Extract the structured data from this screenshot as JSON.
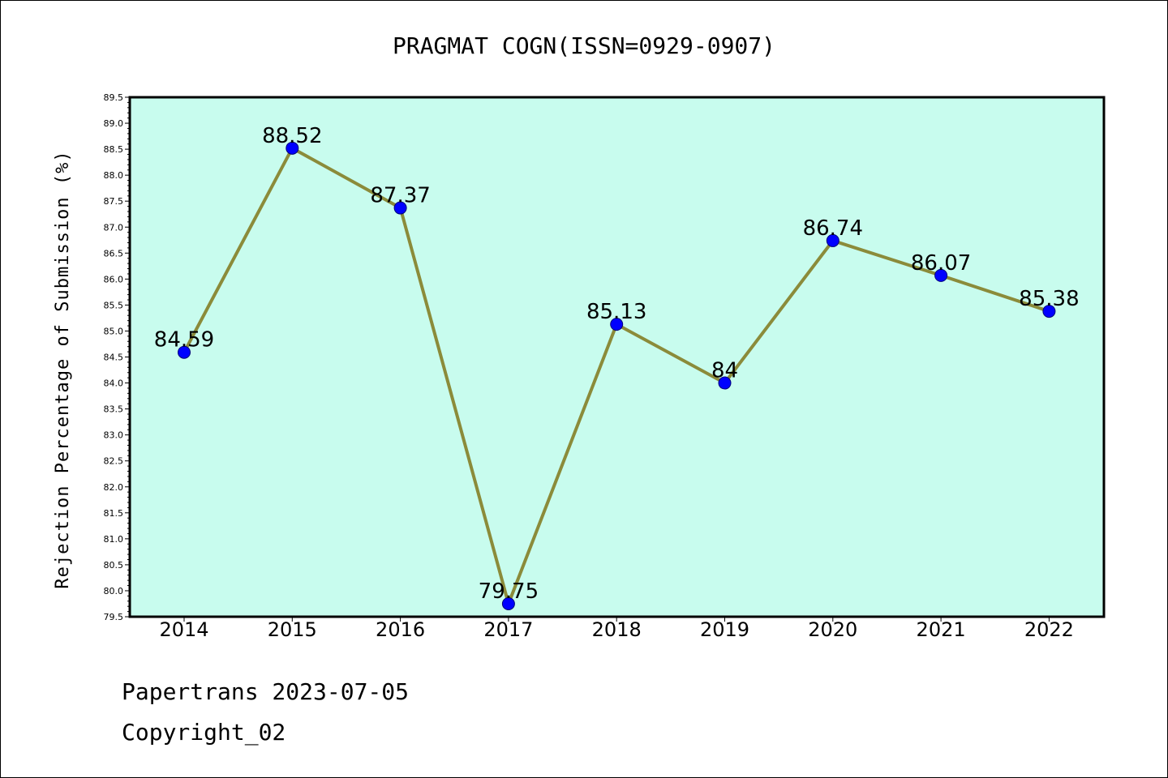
{
  "footer": {
    "line1": "Papertrans 2023-07-05",
    "line2": "Copyright_02"
  },
  "colors": {
    "plot_background": "#c8fcee",
    "line": "#8b8b3a",
    "marker": "#0000ff"
  },
  "chart_data": {
    "type": "line",
    "title": "PRAGMAT COGN(ISSN=0929-0907)",
    "xlabel": "",
    "ylabel": "Rejection Percentage of Submission (%)",
    "categories": [
      "2014",
      "2015",
      "2016",
      "2017",
      "2018",
      "2019",
      "2020",
      "2021",
      "2022"
    ],
    "series": [
      {
        "values": [
          84.59,
          88.52,
          87.37,
          79.75,
          85.13,
          84,
          86.74,
          86.07,
          85.38
        ],
        "data_labels": [
          "84.59",
          "88.52",
          "87.37",
          "79.75",
          "85.13",
          "84",
          "86.74",
          "86.07",
          "85.38"
        ]
      }
    ],
    "ylim": [
      79.5,
      89.5
    ],
    "yticks": [
      "79.5",
      "80.0",
      "80.5",
      "81.0",
      "81.5",
      "82.0",
      "82.5",
      "83.0",
      "83.5",
      "84.0",
      "84.5",
      "85.0",
      "85.5",
      "86.0",
      "86.5",
      "87.0",
      "87.5",
      "88.0",
      "88.5",
      "89.0",
      "89.5"
    ],
    "grid": false,
    "legend": "none"
  }
}
